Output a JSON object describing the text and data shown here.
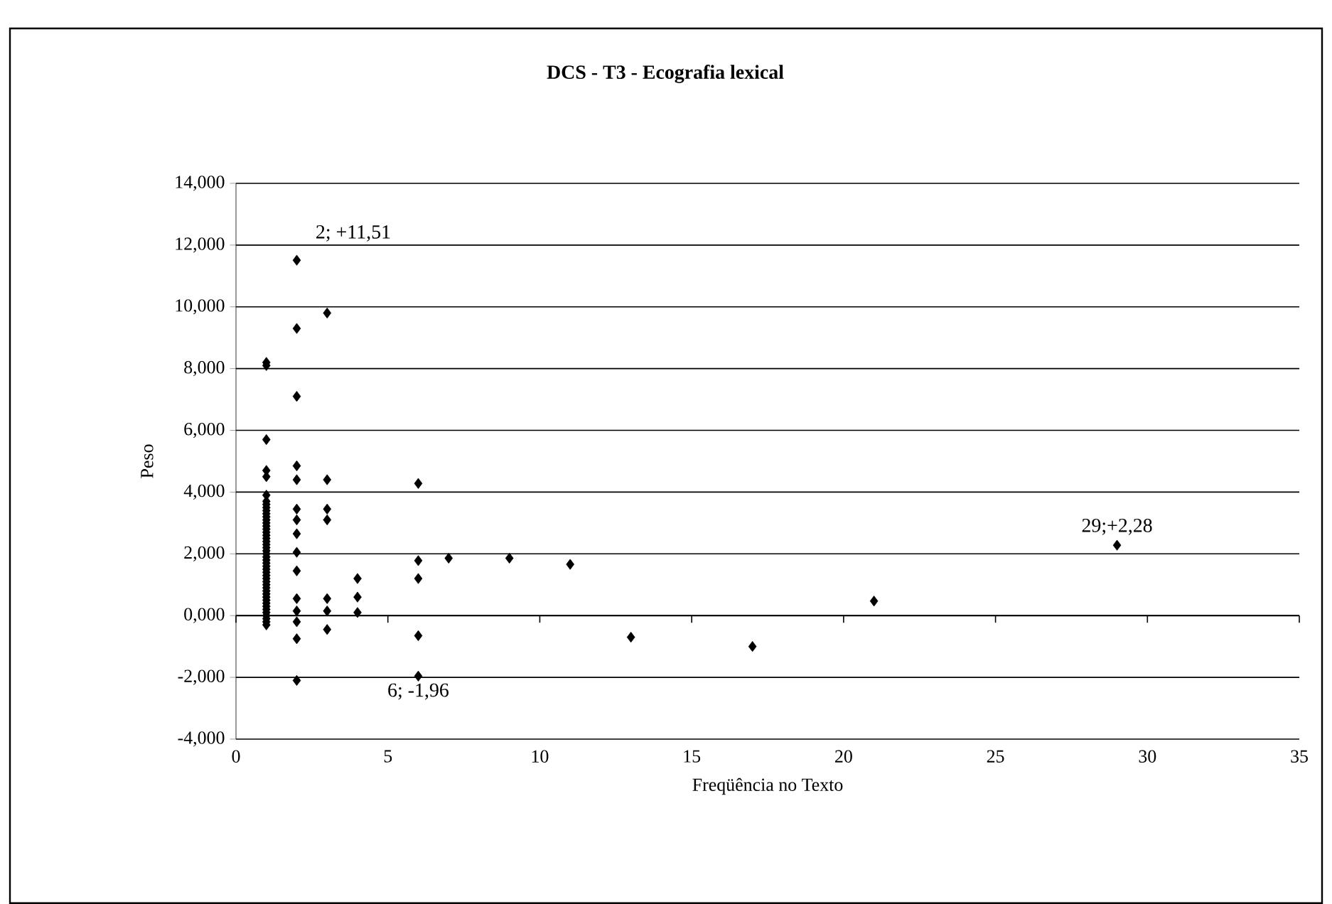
{
  "chart_data": {
    "type": "scatter",
    "title": "DCS - T3 - Ecografia lexical",
    "xlabel": "Freqüência no Texto",
    "ylabel": "Peso",
    "series": [
      {
        "color": "#000000",
        "x": [
          1,
          1,
          1,
          1,
          1,
          1,
          1,
          1,
          1,
          1,
          1,
          1,
          1,
          1,
          1,
          1,
          1,
          1,
          1,
          1,
          1,
          1,
          1,
          1,
          1,
          1,
          1,
          1,
          1,
          1,
          1,
          1,
          1,
          1,
          1,
          1,
          1,
          1,
          1,
          1,
          1,
          1,
          1,
          1,
          1,
          1,
          1,
          2,
          2,
          2,
          2,
          2,
          2,
          2,
          2,
          2,
          2,
          2,
          2,
          2,
          2,
          2,
          3,
          3,
          3,
          3,
          3,
          3,
          3,
          4,
          4,
          4,
          6,
          6,
          6,
          6,
          6,
          7,
          9,
          11,
          13,
          17,
          21,
          29
        ],
        "values": [
          -0.3,
          -0.2,
          -0.1,
          0.0,
          0.1,
          0.2,
          0.3,
          0.4,
          0.5,
          0.6,
          0.7,
          0.8,
          0.9,
          1.0,
          1.1,
          1.2,
          1.3,
          1.4,
          1.5,
          1.6,
          1.7,
          1.8,
          1.9,
          2.0,
          2.1,
          2.2,
          2.3,
          2.4,
          2.5,
          2.6,
          2.7,
          2.8,
          2.9,
          3.0,
          3.1,
          3.2,
          3.3,
          3.4,
          3.5,
          3.6,
          3.7,
          3.9,
          4.5,
          4.7,
          5.7,
          8.1,
          8.2,
          11.51,
          9.3,
          7.1,
          4.85,
          4.4,
          3.45,
          3.1,
          2.65,
          2.05,
          1.45,
          0.55,
          0.15,
          -0.2,
          -0.75,
          -2.1,
          9.8,
          4.4,
          3.45,
          3.1,
          0.55,
          0.15,
          -0.45,
          1.2,
          0.6,
          0.1,
          4.28,
          1.78,
          1.2,
          -0.65,
          -1.96,
          1.86,
          1.86,
          1.66,
          -0.7,
          -1.0,
          0.47,
          2.28
        ]
      }
    ],
    "xlim": [
      0,
      35
    ],
    "xticks": [
      0,
      5,
      10,
      15,
      20,
      25,
      30,
      35
    ],
    "ylim": [
      -4,
      14
    ],
    "yticks": [
      {
        "value": -4,
        "label": "-4,000"
      },
      {
        "value": -2,
        "label": "-2,000"
      },
      {
        "value": 0,
        "label": "0,000"
      },
      {
        "value": 2,
        "label": "2,000"
      },
      {
        "value": 4,
        "label": "4,000"
      },
      {
        "value": 6,
        "label": "6,000"
      },
      {
        "value": 8,
        "label": "8,000"
      },
      {
        "value": 10,
        "label": "10,000"
      },
      {
        "value": 12,
        "label": "12,000"
      },
      {
        "value": 14,
        "label": "14,000"
      }
    ],
    "grid": "y",
    "marker": "diamond",
    "annotations": [
      {
        "text": "2; +11,51",
        "x": 2,
        "y": 11.51
      },
      {
        "text": "29;+2,28",
        "x": 29,
        "y": 2.28
      },
      {
        "text": "6; -1,96",
        "x": 6,
        "y": -1.96
      }
    ]
  }
}
